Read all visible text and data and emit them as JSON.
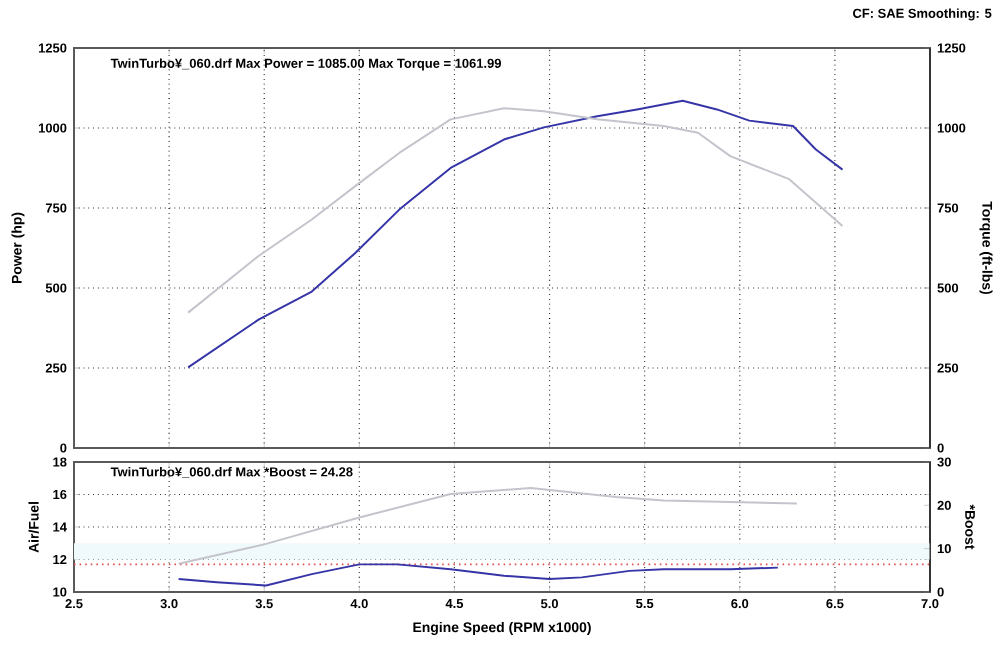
{
  "chart_data": [
    {
      "type": "line",
      "ylabel": "Power (hp)",
      "y2label": "Torque (ft-lbs)",
      "annotations": [
        "TwinTurbo¥_060.drf Max Power = 1085.00     Max Torque = 1061.99",
        "CF: SAE  Smoothing: 5"
      ],
      "xlim": [
        2.5,
        7
      ],
      "xticks": [
        2.5,
        3,
        3.5,
        4,
        4.5,
        5,
        5.5,
        6,
        6.5,
        7
      ],
      "ylim": [
        0,
        1250
      ],
      "yticks": [
        0,
        250,
        500,
        750,
        1000,
        1250
      ],
      "y2lim": [
        0,
        1250
      ],
      "y2ticks": [
        0,
        250,
        500,
        750,
        1000,
        1250
      ],
      "grid": true,
      "tick_labels": "y",
      "series": [
        {
          "color": "#3535a8",
          "x": [
            3.1,
            3.47,
            3.75,
            3.98,
            4.21,
            4.48,
            4.76,
            4.97,
            5.25,
            5.46,
            5.7,
            5.88,
            6.05,
            6.28,
            6.4,
            6.54
          ],
          "values": [
            252,
            401,
            489,
            610,
            745,
            875,
            964,
            1002,
            1037,
            1058,
            1085,
            1058,
            1023,
            1006,
            933,
            870
          ]
        },
        {
          "color": "#c4c4cc",
          "axis": "y2",
          "x": [
            3.1,
            3.47,
            3.75,
            3.98,
            4.21,
            4.48,
            4.76,
            4.97,
            5.25,
            5.6,
            5.78,
            5.95,
            6.26,
            6.54
          ],
          "values": [
            423,
            600,
            714,
            819,
            922,
            1027,
            1062,
            1052,
            1027,
            1006,
            985,
            912,
            840,
            694
          ]
        }
      ]
    },
    {
      "type": "line",
      "xlabel": "Engine Speed (RPM x1000)",
      "ylabel": "Air/Fuel",
      "y2label": "*Boost",
      "annotations": [
        "TwinTurbo¥_060.drf Max *Boost = 24.28"
      ],
      "xlim": [
        2.5,
        7
      ],
      "xticks": [
        2.5,
        {
          "value": 3,
          "label": "3.0"
        },
        3.5,
        {
          "value": 4,
          "label": "4.0"
        },
        4.5,
        {
          "value": 5,
          "label": "5.0"
        },
        5.5,
        {
          "value": 6,
          "label": "6.0"
        },
        6.5,
        {
          "value": 7,
          "label": "7.0"
        }
      ],
      "ylim": [
        10,
        18
      ],
      "yticks": [
        10,
        12,
        14,
        16,
        18
      ],
      "y2lim": [
        0,
        30
      ],
      "y2ticks": [
        0,
        10,
        20,
        30
      ],
      "grid": true,
      "ref_lines": [
        {
          "axis": "y",
          "value": 11.7,
          "color": "#e05050",
          "line_style": "dotted"
        }
      ],
      "bands": [
        {
          "axis": "y",
          "from": 12,
          "to": 13,
          "color": "#f0f9fb"
        }
      ],
      "series": [
        {
          "color": "#3535a8",
          "x": [
            3.05,
            3.25,
            3.51,
            3.75,
            4.0,
            4.2,
            4.48,
            4.76,
            5.0,
            5.17,
            5.42,
            5.6,
            5.95,
            6.2
          ],
          "values": [
            10.8,
            10.6,
            10.4,
            11.1,
            11.7,
            11.7,
            11.4,
            11.0,
            10.8,
            10.9,
            11.3,
            11.4,
            11.4,
            11.5
          ]
        },
        {
          "color": "#c4c4cc",
          "axis": "y2",
          "x": [
            3.05,
            3.51,
            4.0,
            4.48,
            4.9,
            5.35,
            5.6,
            6.3
          ],
          "values": [
            6.5,
            11.1,
            17.2,
            22.6,
            24,
            21.9,
            21.1,
            20.4
          ]
        }
      ]
    }
  ]
}
